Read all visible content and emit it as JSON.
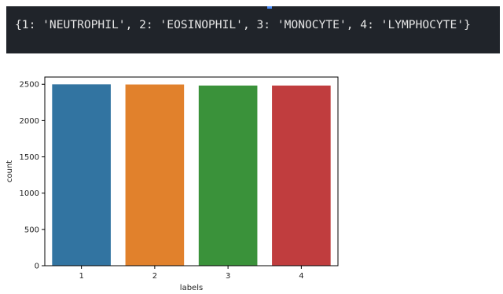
{
  "output_cell": {
    "text": "{1: 'NEUTROPHIL', 2: 'EOSINOPHIL', 3: 'MONOCYTE', 4: 'LYMPHOCYTE'}"
  },
  "chart_data": {
    "type": "bar",
    "categories": [
      "1",
      "2",
      "3",
      "4"
    ],
    "values": [
      2499,
      2497,
      2483,
      2483
    ],
    "colors": [
      "#3274a1",
      "#e1812c",
      "#3a923a",
      "#c03d3e"
    ],
    "xlabel": "labels",
    "ylabel": "count",
    "ylim": [
      0,
      2600
    ],
    "yticks": [
      0,
      500,
      1000,
      1500,
      2000,
      2500
    ],
    "grid": false
  }
}
